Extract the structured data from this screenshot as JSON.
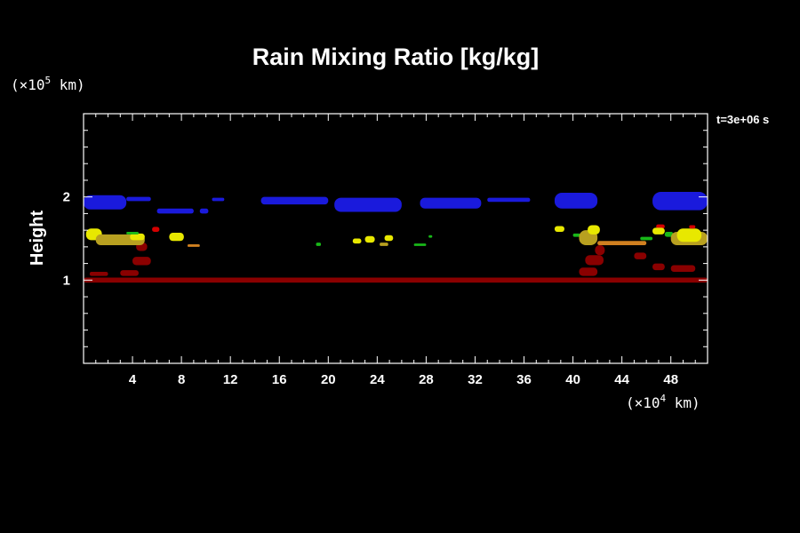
{
  "chart_data": {
    "type": "heatmap",
    "title": "Rain Mixing Ratio [kg/kg]",
    "ylabel": "Height",
    "time_label": "t=3e+06 s",
    "x_unit": {
      "prefix": "(×10",
      "exponent": "4",
      "suffix": " km)"
    },
    "y_unit": {
      "prefix": "(×10",
      "exponent": "5",
      "suffix": " km)"
    },
    "xlim": [
      0,
      51
    ],
    "ylim": [
      0,
      3
    ],
    "x_ticks": [
      4,
      8,
      12,
      16,
      20,
      24,
      28,
      32,
      36,
      40,
      44,
      48
    ],
    "y_ticks": [
      1,
      2
    ],
    "x_minor_step": 1,
    "y_minor_step": 0.2,
    "colors": {
      "blue": "#1a1adc",
      "darkred": "#8a0000",
      "red": "#d40000",
      "yellow": "#e8e800",
      "olive": "#b8a020",
      "orange": "#d08020",
      "green": "#18b818"
    },
    "regions": [
      {
        "level": "darkred",
        "x0": 0.0,
        "x1": 51.0,
        "y0": 0.97,
        "y1": 1.03
      },
      {
        "level": "darkred",
        "x0": 0.5,
        "x1": 2.0,
        "y0": 1.05,
        "y1": 1.1
      },
      {
        "level": "darkred",
        "x0": 3.0,
        "x1": 4.5,
        "y0": 1.05,
        "y1": 1.12
      },
      {
        "level": "darkred",
        "x0": 4.0,
        "x1": 5.5,
        "y0": 1.18,
        "y1": 1.28
      },
      {
        "level": "darkred",
        "x0": 4.3,
        "x1": 5.2,
        "y0": 1.35,
        "y1": 1.45
      },
      {
        "level": "darkred",
        "x0": 40.5,
        "x1": 42.0,
        "y0": 1.05,
        "y1": 1.15
      },
      {
        "level": "darkred",
        "x0": 41.0,
        "x1": 42.5,
        "y0": 1.18,
        "y1": 1.3
      },
      {
        "level": "darkred",
        "x0": 41.8,
        "x1": 42.6,
        "y0": 1.3,
        "y1": 1.42
      },
      {
        "level": "darkred",
        "x0": 45.0,
        "x1": 46.0,
        "y0": 1.25,
        "y1": 1.33
      },
      {
        "level": "darkred",
        "x0": 46.5,
        "x1": 47.5,
        "y0": 1.12,
        "y1": 1.2
      },
      {
        "level": "darkred",
        "x0": 48.0,
        "x1": 50.0,
        "y0": 1.1,
        "y1": 1.18
      },
      {
        "level": "blue",
        "x0": 0.0,
        "x1": 3.5,
        "y0": 1.85,
        "y1": 2.02
      },
      {
        "level": "blue",
        "x0": 3.5,
        "x1": 5.5,
        "y0": 1.95,
        "y1": 2.0
      },
      {
        "level": "blue",
        "x0": 6.0,
        "x1": 9.0,
        "y0": 1.8,
        "y1": 1.86
      },
      {
        "level": "blue",
        "x0": 9.5,
        "x1": 10.2,
        "y0": 1.8,
        "y1": 1.86
      },
      {
        "level": "blue",
        "x0": 10.5,
        "x1": 11.5,
        "y0": 1.95,
        "y1": 1.99
      },
      {
        "level": "blue",
        "x0": 14.5,
        "x1": 20.0,
        "y0": 1.91,
        "y1": 2.0
      },
      {
        "level": "blue",
        "x0": 20.5,
        "x1": 26.0,
        "y0": 1.82,
        "y1": 1.99
      },
      {
        "level": "blue",
        "x0": 27.5,
        "x1": 32.5,
        "y0": 1.86,
        "y1": 1.99
      },
      {
        "level": "blue",
        "x0": 33.0,
        "x1": 36.5,
        "y0": 1.94,
        "y1": 1.99
      },
      {
        "level": "blue",
        "x0": 38.5,
        "x1": 42.0,
        "y0": 1.86,
        "y1": 2.05
      },
      {
        "level": "blue",
        "x0": 46.5,
        "x1": 51.0,
        "y0": 1.84,
        "y1": 2.06
      },
      {
        "level": "yellow",
        "x0": 0.2,
        "x1": 1.5,
        "y0": 1.48,
        "y1": 1.62
      },
      {
        "level": "olive",
        "x0": 1.0,
        "x1": 5.0,
        "y0": 1.42,
        "y1": 1.55
      },
      {
        "level": "yellow",
        "x0": 3.8,
        "x1": 5.0,
        "y0": 1.48,
        "y1": 1.56
      },
      {
        "level": "green",
        "x0": 3.5,
        "x1": 4.5,
        "y0": 1.55,
        "y1": 1.58
      },
      {
        "level": "red",
        "x0": 5.6,
        "x1": 6.2,
        "y0": 1.58,
        "y1": 1.64
      },
      {
        "level": "yellow",
        "x0": 7.0,
        "x1": 8.2,
        "y0": 1.47,
        "y1": 1.57
      },
      {
        "level": "orange",
        "x0": 8.5,
        "x1": 9.5,
        "y0": 1.4,
        "y1": 1.43
      },
      {
        "level": "green",
        "x0": 19.0,
        "x1": 19.4,
        "y0": 1.41,
        "y1": 1.45
      },
      {
        "level": "yellow",
        "x0": 22.0,
        "x1": 22.7,
        "y0": 1.44,
        "y1": 1.5
      },
      {
        "level": "yellow",
        "x0": 23.0,
        "x1": 23.8,
        "y0": 1.45,
        "y1": 1.53
      },
      {
        "level": "yellow",
        "x0": 24.6,
        "x1": 25.3,
        "y0": 1.47,
        "y1": 1.54
      },
      {
        "level": "olive",
        "x0": 24.2,
        "x1": 24.9,
        "y0": 1.41,
        "y1": 1.45
      },
      {
        "level": "green",
        "x0": 27.0,
        "x1": 28.0,
        "y0": 1.41,
        "y1": 1.44
      },
      {
        "level": "green",
        "x0": 28.2,
        "x1": 28.5,
        "y0": 1.51,
        "y1": 1.54
      },
      {
        "level": "yellow",
        "x0": 38.5,
        "x1": 39.3,
        "y0": 1.58,
        "y1": 1.65
      },
      {
        "level": "green",
        "x0": 40.0,
        "x1": 40.6,
        "y0": 1.52,
        "y1": 1.56
      },
      {
        "level": "olive",
        "x0": 40.5,
        "x1": 42.0,
        "y0": 1.42,
        "y1": 1.6
      },
      {
        "level": "yellow",
        "x0": 41.2,
        "x1": 42.2,
        "y0": 1.55,
        "y1": 1.66
      },
      {
        "level": "orange",
        "x0": 42.0,
        "x1": 46.0,
        "y0": 1.42,
        "y1": 1.47
      },
      {
        "level": "green",
        "x0": 45.5,
        "x1": 46.5,
        "y0": 1.48,
        "y1": 1.52
      },
      {
        "level": "red",
        "x0": 46.8,
        "x1": 47.5,
        "y0": 1.62,
        "y1": 1.67
      },
      {
        "level": "yellow",
        "x0": 46.5,
        "x1": 47.5,
        "y0": 1.55,
        "y1": 1.63
      },
      {
        "level": "green",
        "x0": 47.5,
        "x1": 48.2,
        "y0": 1.52,
        "y1": 1.58
      },
      {
        "level": "olive",
        "x0": 48.0,
        "x1": 51.0,
        "y0": 1.42,
        "y1": 1.58
      },
      {
        "level": "yellow",
        "x0": 48.5,
        "x1": 50.5,
        "y0": 1.46,
        "y1": 1.62
      },
      {
        "level": "red",
        "x0": 49.5,
        "x1": 50.0,
        "y0": 1.62,
        "y1": 1.66
      }
    ]
  }
}
